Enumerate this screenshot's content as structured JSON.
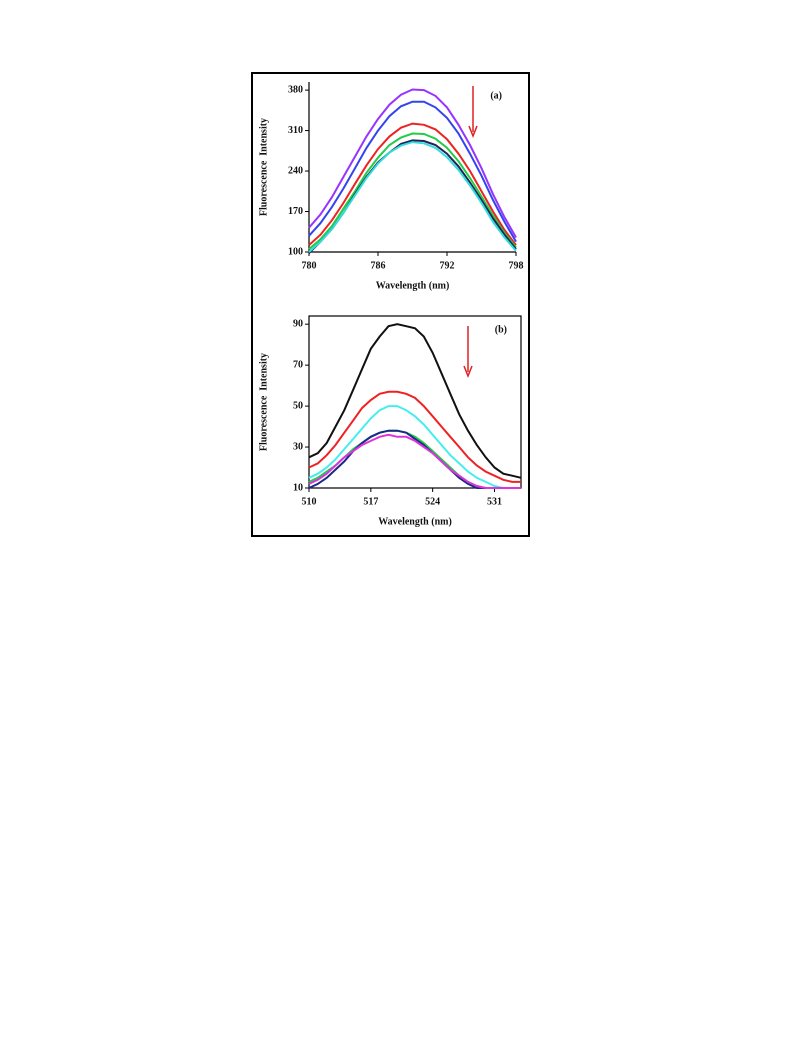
{
  "chart_data": [
    {
      "type": "line",
      "label": "(a)",
      "xlabel": "Wavelength (nm)",
      "ylabel": "Fluorescence  Intensity",
      "x": [
        780,
        781,
        782,
        783,
        784,
        785,
        786,
        787,
        788,
        789,
        790,
        791,
        792,
        793,
        794,
        795,
        796,
        797,
        798
      ],
      "xlim": [
        780,
        798
      ],
      "xticks": [
        780,
        786,
        792,
        798
      ],
      "ylim": [
        100,
        394
      ],
      "yticks": [
        100,
        170,
        240,
        310,
        380
      ],
      "series": [
        {
          "color": "#9933ff",
          "values": [
            142,
            165,
            195,
            230,
            265,
            300,
            330,
            355,
            372,
            381,
            380,
            370,
            350,
            320,
            285,
            245,
            200,
            160,
            125
          ]
        },
        {
          "color": "#3344ee",
          "values": [
            128,
            150,
            178,
            210,
            245,
            280,
            310,
            335,
            352,
            360,
            360,
            350,
            332,
            305,
            270,
            232,
            190,
            152,
            118
          ]
        },
        {
          "color": "#ee2222",
          "values": [
            112,
            130,
            155,
            185,
            218,
            250,
            278,
            300,
            315,
            322,
            320,
            312,
            295,
            270,
            240,
            205,
            170,
            138,
            112
          ]
        },
        {
          "color": "#22cc44",
          "values": [
            105,
            122,
            145,
            175,
            205,
            237,
            263,
            285,
            298,
            305,
            304,
            296,
            280,
            257,
            228,
            196,
            163,
            133,
            108
          ]
        },
        {
          "color": "#222255",
          "values": [
            98,
            118,
            140,
            168,
            200,
            230,
            255,
            272,
            287,
            293,
            292,
            285,
            270,
            248,
            220,
            190,
            158,
            130,
            105
          ]
        },
        {
          "color": "#33dddd",
          "values": [
            100,
            118,
            140,
            168,
            198,
            228,
            253,
            272,
            284,
            290,
            288,
            280,
            264,
            242,
            215,
            185,
            152,
            125,
            102
          ]
        }
      ]
    },
    {
      "type": "line",
      "label": "(b)",
      "xlabel": "Wavelength (nm)",
      "ylabel": "Fluorescence  Intensity",
      "x": [
        510,
        511,
        512,
        513,
        514,
        515,
        516,
        517,
        518,
        519,
        520,
        521,
        522,
        523,
        524,
        525,
        526,
        527,
        528,
        529,
        530,
        531,
        532,
        533,
        534
      ],
      "xlim": [
        510,
        534
      ],
      "xticks": [
        510,
        517,
        524,
        531
      ],
      "ylim": [
        10,
        94
      ],
      "yticks": [
        10,
        30,
        50,
        70,
        90
      ],
      "series": [
        {
          "color": "#111111",
          "values": [
            25,
            27,
            32,
            40,
            48,
            58,
            68,
            78,
            84,
            89,
            90,
            89,
            88,
            84,
            76,
            66,
            56,
            46,
            38,
            31,
            25,
            20,
            17,
            16,
            15
          ]
        },
        {
          "color": "#ee2222",
          "values": [
            20,
            22,
            26,
            31,
            37,
            43,
            49,
            53,
            56,
            57,
            57,
            56,
            54,
            50,
            45,
            40,
            35,
            30,
            25,
            21,
            18,
            16,
            14,
            13,
            13
          ]
        },
        {
          "color": "#44eeee",
          "values": [
            15,
            17,
            20,
            24,
            29,
            34,
            39,
            44,
            48,
            50,
            50,
            48,
            45,
            41,
            36,
            31,
            26,
            22,
            18,
            15,
            13,
            11,
            10,
            10,
            10
          ]
        },
        {
          "color": "#22cc44",
          "values": [
            13,
            15,
            18,
            21,
            25,
            29,
            32,
            35,
            37,
            38,
            38,
            37,
            35,
            32,
            28,
            24,
            20,
            16,
            13,
            11,
            10,
            10,
            10,
            10,
            10
          ]
        },
        {
          "color": "#1a2a88",
          "values": [
            10,
            12,
            15,
            19,
            23,
            28,
            32,
            35,
            37,
            38,
            38,
            37,
            34,
            31,
            27,
            23,
            19,
            15,
            12,
            10,
            10,
            10,
            10,
            10,
            10
          ]
        },
        {
          "color": "#dd33dd",
          "values": [
            12,
            14,
            17,
            21,
            25,
            28,
            31,
            33,
            35,
            36,
            35,
            35,
            33,
            30,
            27,
            23,
            19,
            16,
            13,
            11,
            10,
            10,
            10,
            10,
            10
          ]
        }
      ]
    }
  ]
}
